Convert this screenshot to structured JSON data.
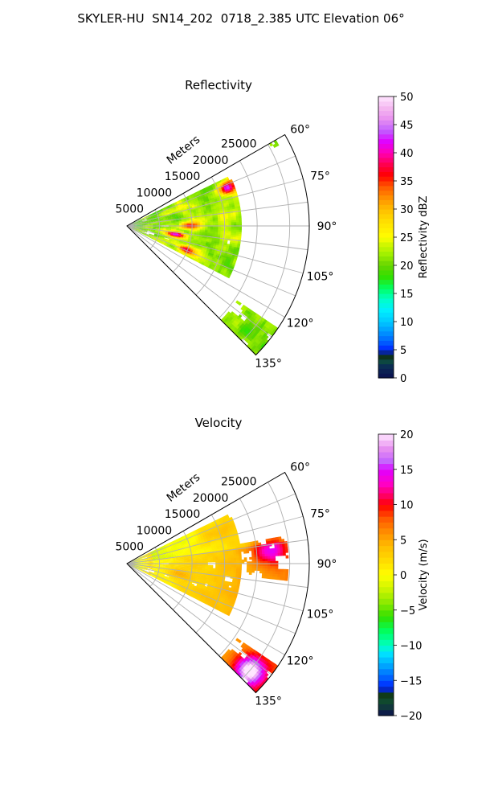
{
  "figure": {
    "title": "SKYLER-HU  SN14_202  0718_2.385 UTC Elevation 06°"
  },
  "chart_data": [
    {
      "type": "heatmap",
      "subtitle": "Reflectivity",
      "radial_axis_label": "Meters",
      "radial_ticks": [
        "5000",
        "10000",
        "15000",
        "20000",
        "25000"
      ],
      "azimuth_ticks": [
        "60°",
        "75°",
        "90°",
        "105°",
        "120°",
        "135°"
      ],
      "azimuth_range_deg": [
        60,
        135
      ],
      "range_m": [
        0,
        28000
      ],
      "colorbar": {
        "label": "Reflectivity dBZ",
        "range": [
          0,
          50
        ],
        "ticks": [
          "0",
          "5",
          "10",
          "15",
          "20",
          "25",
          "30",
          "35",
          "40",
          "45",
          "50"
        ]
      },
      "features": [
        {
          "azimuth_deg": 90,
          "range_m": 10000,
          "value_dbz": 38
        },
        {
          "azimuth_deg": 100,
          "range_m": 7500,
          "value_dbz": 42
        },
        {
          "azimuth_deg": 112,
          "range_m": 10000,
          "value_dbz": 40
        },
        {
          "azimuth_deg": 69,
          "range_m": 16500,
          "value_dbz": 42
        },
        {
          "azimuth_deg": 131,
          "range_m": 25000,
          "value_dbz": 20
        }
      ]
    },
    {
      "type": "heatmap",
      "subtitle": "Velocity",
      "radial_axis_label": "Meters",
      "radial_ticks": [
        "5000",
        "10000",
        "15000",
        "20000",
        "25000"
      ],
      "azimuth_ticks": [
        "60°",
        "75°",
        "90°",
        "105°",
        "120°",
        "135°"
      ],
      "azimuth_range_deg": [
        60,
        135
      ],
      "range_m": [
        0,
        28000
      ],
      "colorbar": {
        "label": "Velocity (m/s)",
        "range": [
          -20,
          20
        ],
        "ticks": [
          "−20",
          "−15",
          "−10",
          "−5",
          "0",
          "5",
          "10",
          "15",
          "20"
        ]
      },
      "features": [
        {
          "azimuth_deg": 85,
          "range_m": 22000,
          "value_ms": 9
        },
        {
          "azimuth_deg": 100,
          "range_m": 8000,
          "value_ms": 3
        },
        {
          "azimuth_deg": 131,
          "range_m": 25000,
          "value_ms": 15
        },
        {
          "azimuth_deg": 72,
          "range_m": 14000,
          "value_ms": 2
        }
      ]
    }
  ]
}
